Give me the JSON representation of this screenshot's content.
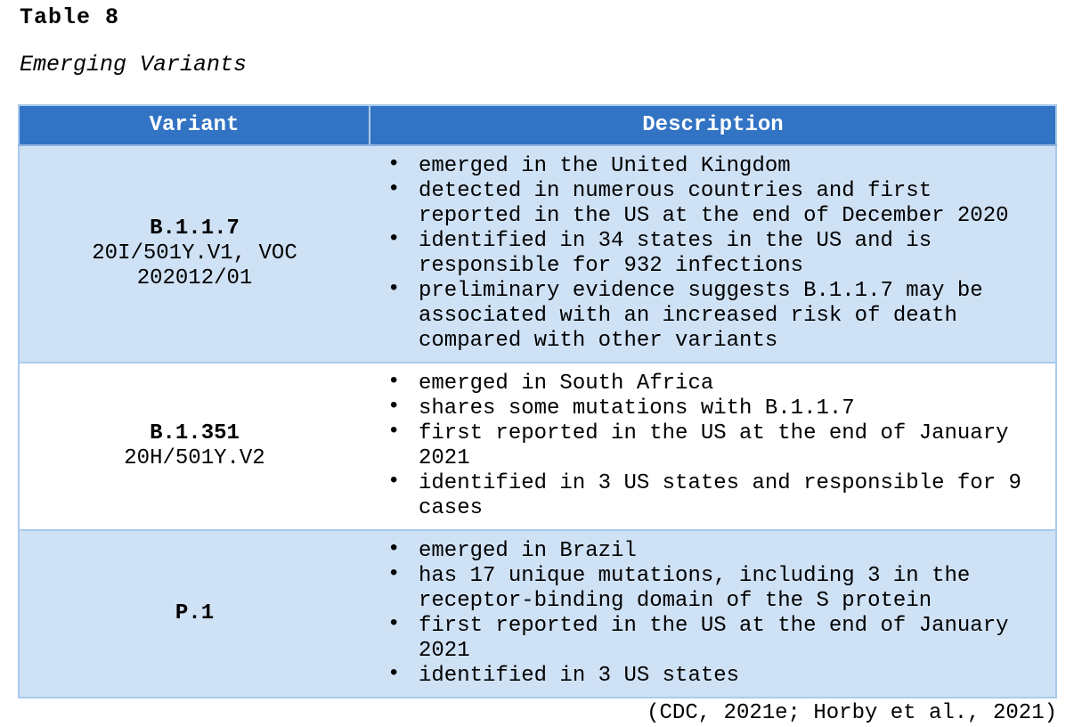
{
  "table_label": "Table 8",
  "table_title": "Emerging Variants",
  "citation": "(CDC, 2021e; Horby et al., 2021)",
  "colors": {
    "header_bg": "#3273C4",
    "header_text": "#FFFFFF",
    "band_row_bg": "#CFE1F5",
    "plain_row_bg": "#FFFFFF",
    "border": "#A9CBEC",
    "text": "#000000"
  },
  "table": {
    "headers": [
      "Variant",
      "Description"
    ],
    "rows": [
      {
        "variant": {
          "name": "B.1.1.7",
          "labels": [
            "20I/501Y.V1, VOC",
            "202012/01"
          ]
        },
        "bullets": [
          "emerged in the United Kingdom",
          "detected in numerous countries and first reported in the US at the end of December 2020",
          "identified in 34 states in the US and is responsible for 932 infections",
          "preliminary evidence suggests B.1.1.7 may be associated with an increased risk of death compared with other variants"
        ]
      },
      {
        "variant": {
          "name": "B.1.351",
          "labels": [
            "20H/501Y.V2"
          ]
        },
        "bullets": [
          "emerged in South Africa",
          "shares some mutations with B.1.1.7",
          "first reported in the US at the end of January 2021",
          "identified in 3 US states and responsible for 9 cases"
        ]
      },
      {
        "variant": {
          "name": "P.1",
          "labels": []
        },
        "bullets": [
          "emerged in Brazil",
          "has 17 unique mutations, including 3 in the receptor-binding domain of the S protein",
          "first reported in the US at the end of January 2021",
          "identified in 3 US states"
        ]
      }
    ]
  }
}
